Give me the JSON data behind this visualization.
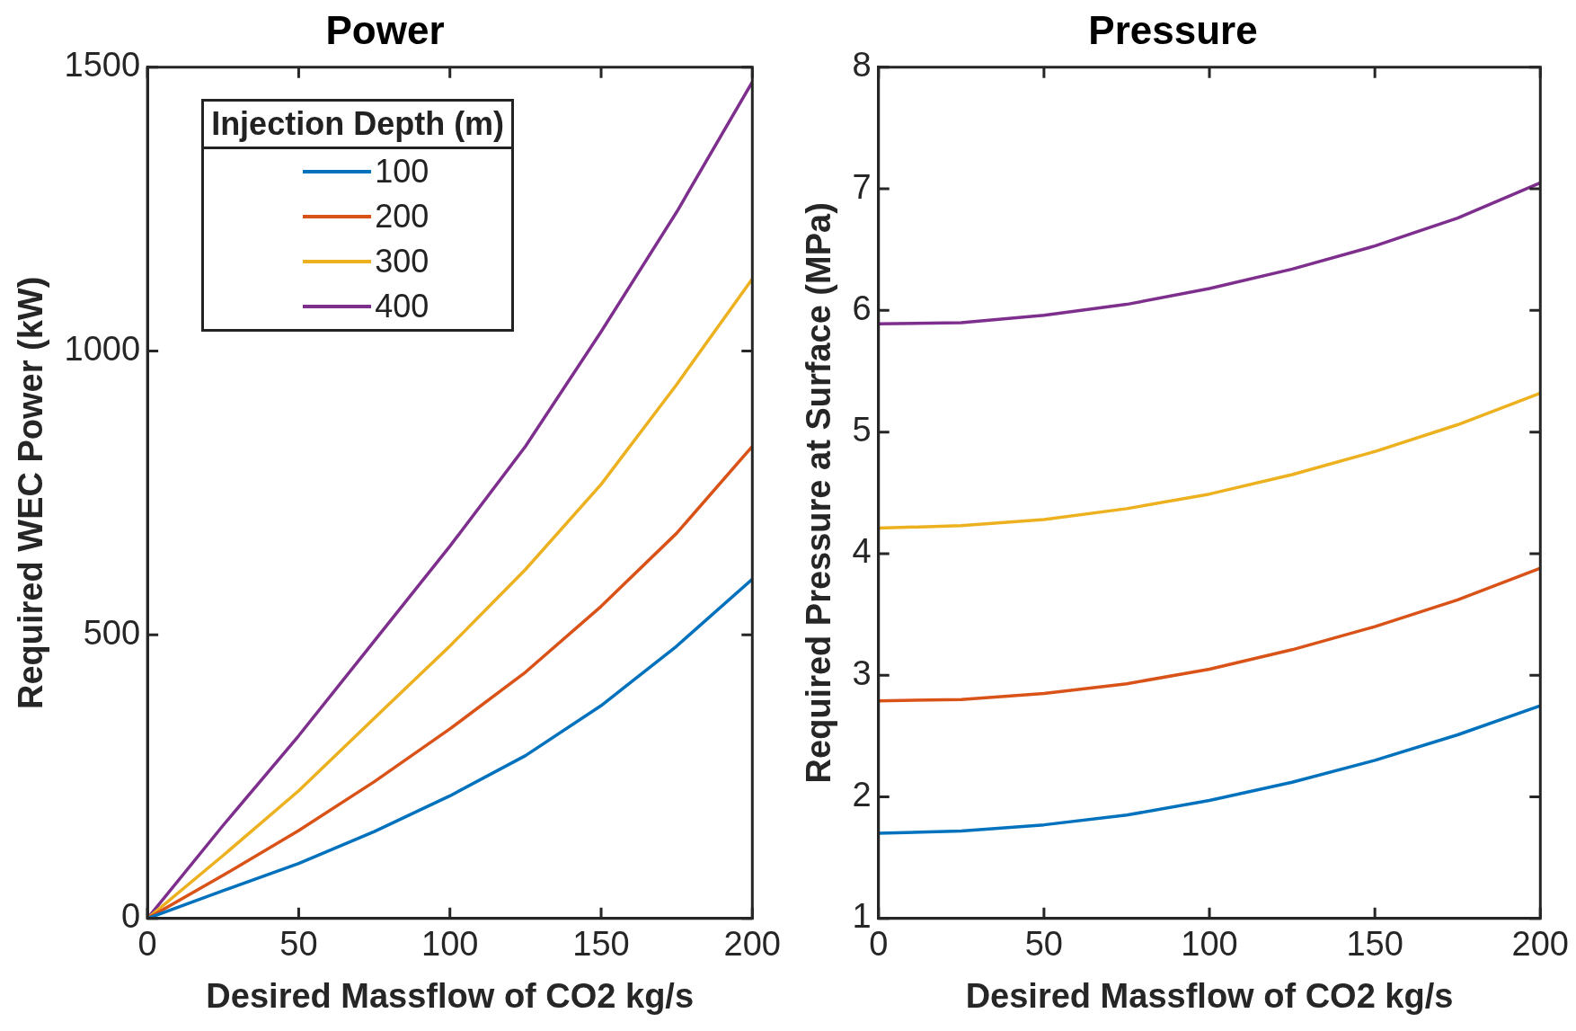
{
  "chart_data": [
    {
      "type": "line",
      "title": "Power",
      "xlabel": "Desired Massflow of CO2 kg/s",
      "ylabel": "Required WEC Power (kW)",
      "legend": "top left",
      "legend_title": "Injection Depth (m)",
      "x": [
        0,
        25,
        50,
        75,
        100,
        125,
        150,
        175,
        200
      ],
      "xlim": [
        0,
        200
      ],
      "ylim": [
        0,
        1500
      ],
      "xticks": [
        0,
        50,
        100,
        150,
        200
      ],
      "yticks": [
        0,
        500,
        1000,
        1500
      ],
      "series": [
        {
          "name": "100",
          "color": "#0072bd",
          "values": [
            0,
            49,
            97,
            153,
            216,
            287,
            375,
            480,
            598
          ]
        },
        {
          "name": "200",
          "color": "#d95319",
          "values": [
            0,
            76,
            155,
            241,
            334,
            434,
            550,
            679,
            832
          ]
        },
        {
          "name": "300",
          "color": "#edb120",
          "values": [
            0,
            111,
            225,
            353,
            480,
            615,
            765,
            941,
            1127
          ]
        },
        {
          "name": "400",
          "color": "#7e2f8e",
          "values": [
            0,
            164,
            322,
            489,
            656,
            832,
            1034,
            1245,
            1474
          ]
        }
      ]
    },
    {
      "type": "line",
      "title": "Pressure",
      "xlabel": "Desired Massflow of CO2 kg/s",
      "ylabel": "Required Pressure at Surface (MPa)",
      "x": [
        0,
        25,
        50,
        75,
        100,
        125,
        150,
        175,
        200
      ],
      "xlim": [
        0,
        200
      ],
      "ylim": [
        1,
        8
      ],
      "xticks": [
        0,
        50,
        100,
        150,
        200
      ],
      "yticks": [
        1,
        2,
        3,
        4,
        5,
        6,
        7,
        8
      ],
      "series": [
        {
          "color": "#0072bd",
          "values": [
            1.7,
            1.72,
            1.77,
            1.85,
            1.97,
            2.12,
            2.3,
            2.51,
            2.75
          ]
        },
        {
          "color": "#d95319",
          "values": [
            2.79,
            2.8,
            2.85,
            2.93,
            3.05,
            3.21,
            3.4,
            3.62,
            3.88
          ]
        },
        {
          "color": "#edb120",
          "values": [
            4.21,
            4.23,
            4.28,
            4.37,
            4.49,
            4.65,
            4.84,
            5.06,
            5.32
          ]
        },
        {
          "color": "#7e2f8e",
          "values": [
            5.89,
            5.9,
            5.96,
            6.05,
            6.18,
            6.34,
            6.53,
            6.76,
            7.05
          ]
        }
      ]
    }
  ]
}
